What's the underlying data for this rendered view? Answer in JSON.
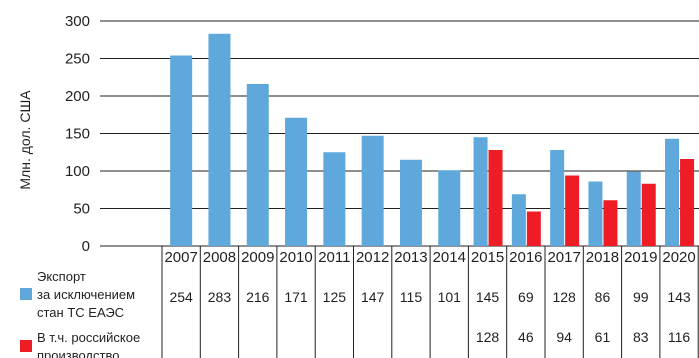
{
  "chart_data": {
    "type": "bar",
    "ylabel": "Млн. дол. США",
    "ylim": [
      0,
      300
    ],
    "yticks": [
      "0",
      "50",
      "100",
      "150",
      "200",
      "250",
      "300"
    ],
    "grid": true,
    "categories": [
      "2007",
      "2008",
      "2009",
      "2010",
      "2011",
      "2012",
      "2013",
      "2014",
      "2015",
      "2016",
      "2017",
      "2018",
      "2019",
      "2020"
    ],
    "series": [
      {
        "name_lines": [
          "Экспорт",
          "за исключением",
          "стан ТС ЕАЭС"
        ],
        "color": "#5fa8dc",
        "values": [
          254,
          283,
          216,
          171,
          125,
          147,
          115,
          101,
          145,
          69,
          128,
          86,
          99,
          143
        ]
      },
      {
        "name_lines": [
          "В т.ч. российское",
          "производство"
        ],
        "color": "#ee1c25",
        "values": [
          null,
          null,
          null,
          null,
          null,
          null,
          null,
          null,
          128,
          46,
          94,
          61,
          83,
          116
        ]
      }
    ],
    "table_values": [
      [
        "254",
        "283",
        "216",
        "171",
        "125",
        "147",
        "115",
        "101",
        "145",
        "69",
        "128",
        "86",
        "99",
        "143"
      ],
      [
        "",
        "",
        "",
        "",
        "",
        "",
        "",
        "",
        "128",
        "46",
        "94",
        "61",
        "83",
        "116"
      ]
    ]
  }
}
